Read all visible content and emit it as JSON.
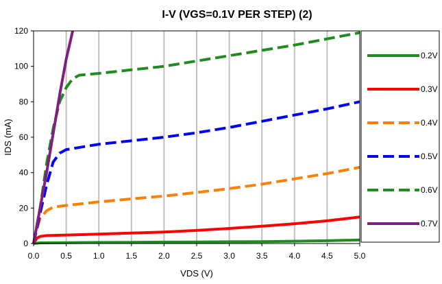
{
  "chart_data": {
    "type": "line",
    "title": "I-V (VGS=0.1V PER STEP) (2)",
    "xlabel": "VDS (V)",
    "ylabel": "IDS (mA)",
    "xlim": [
      0,
      5
    ],
    "ylim": [
      0,
      120
    ],
    "x_ticks": [
      "0.0",
      "0.5",
      "1.0",
      "1.5",
      "2.0",
      "2.5",
      "3.0",
      "3.5",
      "4.0",
      "4.5",
      "5.0"
    ],
    "y_ticks": [
      "0",
      "20",
      "40",
      "60",
      "80",
      "100",
      "120"
    ],
    "grid": "vertical",
    "legend_position": "right",
    "series": [
      {
        "name": "0.2V",
        "color": "#1e8c1e",
        "dash": "solid",
        "x": [
          0,
          0.1,
          0.5,
          1,
          1.5,
          2,
          2.5,
          3,
          3.5,
          4,
          4.5,
          5
        ],
        "y": [
          0,
          0.4,
          0.5,
          0.6,
          0.7,
          0.8,
          0.9,
          1.0,
          1.1,
          1.3,
          1.6,
          2.0
        ]
      },
      {
        "name": "0.3V",
        "color": "#ff0000",
        "dash": "solid",
        "x": [
          0,
          0.05,
          0.1,
          0.2,
          0.5,
          1,
          1.5,
          2,
          2.5,
          3,
          3.5,
          4,
          4.5,
          5
        ],
        "y": [
          0,
          3.0,
          4.0,
          4.5,
          4.8,
          5.3,
          5.9,
          6.5,
          7.4,
          8.5,
          9.8,
          11.2,
          12.8,
          15.0
        ]
      },
      {
        "name": "0.4V",
        "color": "#ff8000",
        "dash": "dashed",
        "x": [
          0,
          0.05,
          0.1,
          0.2,
          0.3,
          0.5,
          1,
          1.5,
          2,
          2.5,
          3,
          3.5,
          4,
          4.5,
          5
        ],
        "y": [
          0,
          8,
          14,
          18.5,
          20.5,
          21.5,
          23.5,
          25.2,
          26.8,
          28.8,
          31.0,
          33.5,
          36.5,
          39.5,
          43.0
        ]
      },
      {
        "name": "0.5V",
        "color": "#0000ff",
        "dash": "dashed",
        "x": [
          0,
          0.1,
          0.2,
          0.3,
          0.4,
          0.5,
          1,
          1.5,
          2,
          2.5,
          3,
          3.5,
          4,
          4.5,
          5
        ],
        "y": [
          0,
          17,
          33,
          46,
          51,
          53,
          56,
          58,
          60,
          62.5,
          65.5,
          69,
          72.5,
          76,
          80
        ]
      },
      {
        "name": "0.6V",
        "color": "#1e8c1e",
        "dash": "dashed",
        "x": [
          0,
          0.1,
          0.2,
          0.3,
          0.4,
          0.5,
          0.6,
          0.7,
          1,
          1.5,
          2,
          2.5,
          3,
          3.5,
          4,
          4.5,
          5
        ],
        "y": [
          0,
          20,
          45,
          65,
          80,
          88,
          93,
          95,
          96,
          98,
          100,
          103,
          106,
          109,
          112,
          115.5,
          119
        ]
      },
      {
        "name": "0.7V",
        "color": "#7f1f7f",
        "dash": "solid",
        "x": [
          0,
          0.1,
          0.2,
          0.3,
          0.4,
          0.5,
          0.6
        ],
        "y": [
          0,
          20,
          40,
          62,
          84,
          104,
          120
        ]
      }
    ]
  }
}
